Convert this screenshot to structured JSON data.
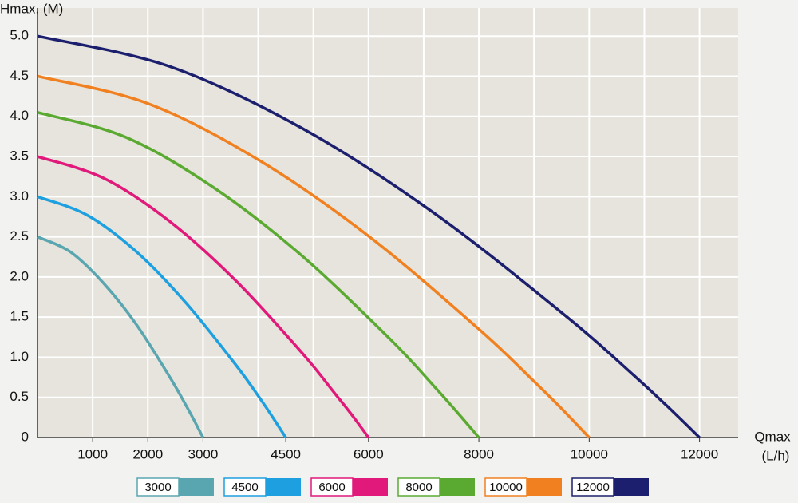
{
  "chart_data": {
    "type": "line",
    "ylabel": "Hmax. (M)",
    "xlabel_lines": [
      "Qmax",
      "(L/h)"
    ],
    "xlim": [
      0,
      12700
    ],
    "ylim": [
      0,
      5.35
    ],
    "xticks": [
      1000,
      2000,
      3000,
      4500,
      6000,
      8000,
      10000,
      12000
    ],
    "xgrid": [
      1000,
      2000,
      3000,
      4000,
      5000,
      6000,
      7000,
      8000,
      9000,
      10000,
      11000,
      12000
    ],
    "yticks": [
      0,
      0.5,
      {
        "value": 1,
        "label": "1.0"
      },
      1.5,
      {
        "value": 2,
        "label": "2.0"
      },
      2.5,
      {
        "value": 3,
        "label": "3.0"
      },
      3.5,
      {
        "value": 4,
        "label": "4.0"
      },
      4.5,
      {
        "value": 5,
        "label": "5.0"
      }
    ],
    "grid": true,
    "series": [
      {
        "name": "3000",
        "color": "#5aa6b0",
        "x": [
          0,
          600,
          1200,
          1800,
          2400,
          2700,
          2850,
          3000
        ],
        "values": [
          2.5,
          2.31,
          1.92,
          1.4,
          0.75,
          0.39,
          0.2,
          0
        ]
      },
      {
        "name": "4500",
        "color": "#1ea0e0",
        "x": [
          0,
          900,
          1800,
          2700,
          3600,
          4050,
          4275,
          4500
        ],
        "values": [
          3,
          2.77,
          2.31,
          1.67,
          0.9,
          0.47,
          0.24,
          0
        ]
      },
      {
        "name": "6000",
        "color": "#e0197a",
        "x": [
          0,
          1200,
          2400,
          3600,
          4800,
          5400,
          5700,
          6000
        ],
        "values": [
          3.5,
          3.23,
          2.69,
          1.95,
          1.05,
          0.54,
          0.28,
          0
        ]
      },
      {
        "name": "8000",
        "color": "#5aaa32",
        "x": [
          0,
          1600,
          3200,
          4800,
          6400,
          7200,
          7600,
          8000
        ],
        "values": [
          4.05,
          3.74,
          3.11,
          2.26,
          1.22,
          0.63,
          0.32,
          0
        ]
      },
      {
        "name": "10000",
        "color": "#f08020",
        "x": [
          0,
          2000,
          4000,
          6000,
          8000,
          9000,
          9500,
          10000
        ],
        "values": [
          4.5,
          4.16,
          3.46,
          2.51,
          1.35,
          0.7,
          0.36,
          0
        ]
      },
      {
        "name": "12000",
        "color": "#1c1f6e",
        "x": [
          0,
          2400,
          4800,
          7200,
          9600,
          10800,
          11400,
          12000
        ],
        "values": [
          5,
          4.62,
          3.85,
          2.79,
          1.5,
          0.78,
          0.4,
          0
        ]
      }
    ]
  }
}
